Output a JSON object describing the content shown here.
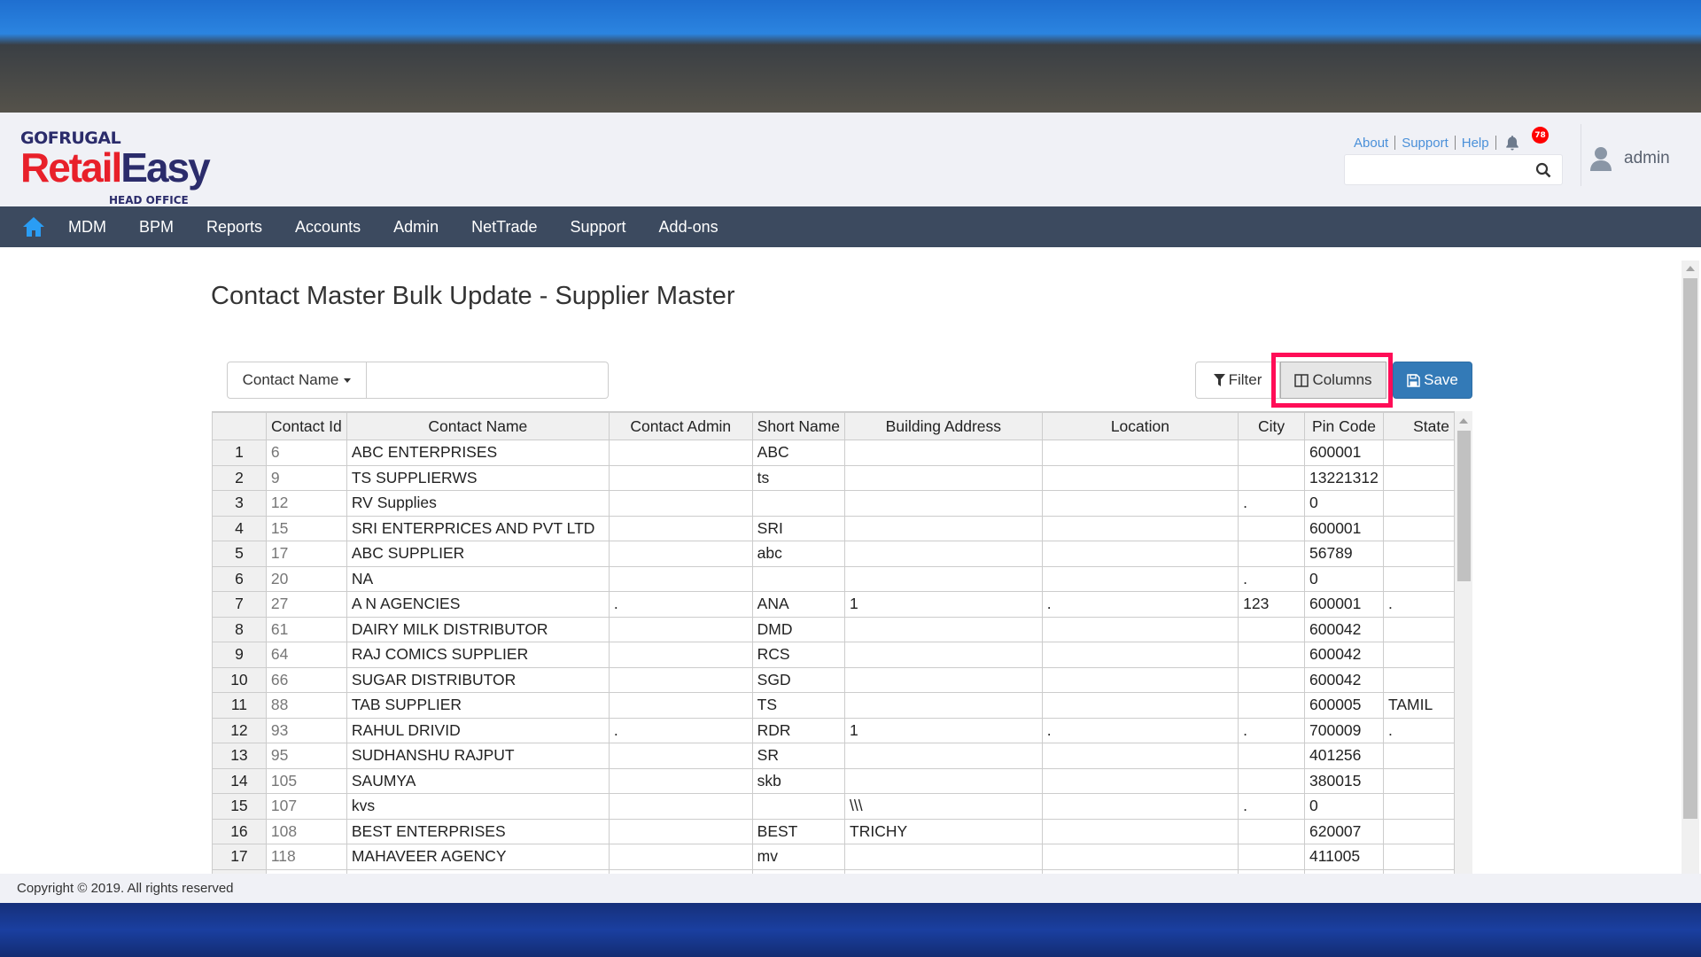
{
  "brand": {
    "line1": "GOFRUGAL",
    "retail": "Retail",
    "easy": "Easy",
    "sub": "HEAD OFFICE",
    "red": "#e8202a",
    "navy": "#2b2c6b"
  },
  "header": {
    "links": [
      "About",
      "Support",
      "Help"
    ],
    "notification_count": "78",
    "search_placeholder": "",
    "user": "admin"
  },
  "nav": {
    "home_icon": "home-icon",
    "items": [
      "MDM",
      "BPM",
      "Reports",
      "Accounts",
      "Admin",
      "NetTrade",
      "Support",
      "Add-ons"
    ]
  },
  "page": {
    "title": "Contact Master Bulk Update - Supplier Master"
  },
  "toolbar": {
    "search_field": "Contact Name",
    "search_value": "",
    "filter": "Filter",
    "columns": "Columns",
    "save": "Save",
    "highlight_color": "#ff0d57",
    "save_color": "#337ab7"
  },
  "table": {
    "columns": [
      "",
      "Contact Id",
      "Contact Name",
      "Contact Admin",
      "Short Name",
      "Building Address",
      "Location",
      "City",
      "Pin Code",
      "State"
    ],
    "rows": [
      [
        "1",
        "6",
        "ABC ENTERPRISES",
        "",
        "ABC",
        "",
        "",
        "",
        "600001",
        ""
      ],
      [
        "2",
        "9",
        "TS SUPPLIERWS",
        "",
        "ts",
        "",
        "",
        "",
        "13221312",
        ""
      ],
      [
        "3",
        "12",
        "RV Supplies",
        "",
        "",
        "",
        "",
        ".",
        "0",
        ""
      ],
      [
        "4",
        "15",
        "SRI ENTERPRICES AND PVT LTD",
        "",
        "SRI",
        "",
        "",
        "",
        "600001",
        ""
      ],
      [
        "5",
        "17",
        "ABC SUPPLIER",
        "",
        "abc",
        "",
        "",
        "",
        "56789",
        ""
      ],
      [
        "6",
        "20",
        "NA",
        "",
        "",
        "",
        "",
        ".",
        "0",
        ""
      ],
      [
        "7",
        "27",
        "A N AGENCIES",
        ".",
        "ANA",
        "1",
        ".",
        "123",
        "600001",
        "."
      ],
      [
        "8",
        "61",
        "DAIRY MILK DISTRIBUTOR",
        "",
        "DMD",
        "",
        "",
        "",
        "600042",
        ""
      ],
      [
        "9",
        "64",
        "RAJ COMICS SUPPLIER",
        "",
        "RCS",
        "",
        "",
        "",
        "600042",
        ""
      ],
      [
        "10",
        "66",
        "SUGAR DISTRIBUTOR",
        "",
        "SGD",
        "",
        "",
        "",
        "600042",
        ""
      ],
      [
        "11",
        "88",
        "TAB SUPPLIER",
        "",
        "TS",
        "",
        "",
        "",
        "600005",
        "TAMIL"
      ],
      [
        "12",
        "93",
        "RAHUL DRIVID",
        ".",
        "RDR",
        "1",
        ".",
        ".",
        "700009",
        "."
      ],
      [
        "13",
        "95",
        "SUDHANSHU RAJPUT",
        "",
        "SR",
        "",
        "",
        "",
        "401256",
        ""
      ],
      [
        "14",
        "105",
        "SAUMYA",
        "",
        "skb",
        "",
        "",
        "",
        "380015",
        ""
      ],
      [
        "15",
        "107",
        "kvs",
        "",
        "",
        "\\\\\\",
        "",
        ".",
        "0",
        ""
      ],
      [
        "16",
        "108",
        "BEST ENTERPRISES",
        "",
        "BEST",
        "TRICHY",
        "",
        "",
        "620007",
        ""
      ],
      [
        "17",
        "118",
        "MAHAVEER AGENCY",
        "",
        "mv",
        "",
        "",
        "",
        "411005",
        ""
      ]
    ]
  },
  "footer": {
    "text": "Copyright © 2019. All rights reserved"
  }
}
